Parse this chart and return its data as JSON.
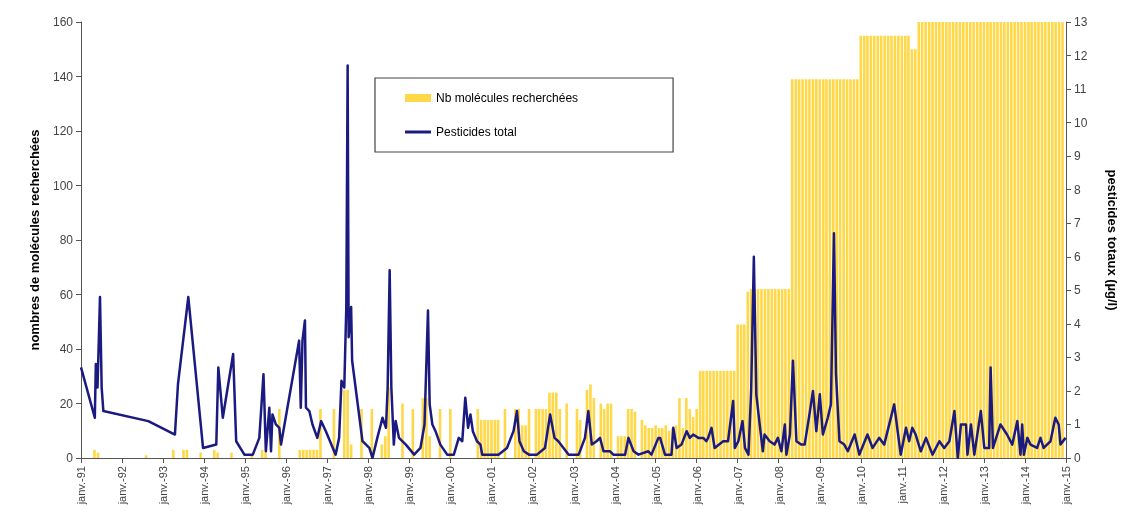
{
  "chart_data": {
    "type": "bar",
    "ylabel": "nombres de molécules recherchées",
    "y2label": "pesticides totaux (µg/l)",
    "xlim": [
      "1991-01",
      "2015-01"
    ],
    "xticks": [
      {
        "value": "1991-01",
        "label": "janv.-91"
      },
      {
        "value": "1992-01",
        "label": "janv.-92"
      },
      {
        "value": "1993-01",
        "label": "janv.-93"
      },
      {
        "value": "1994-01",
        "label": "janv.-94"
      },
      {
        "value": "1995-01",
        "label": "janv.-95"
      },
      {
        "value": "1996-01",
        "label": "janv.-96"
      },
      {
        "value": "1997-01",
        "label": "janv.-97"
      },
      {
        "value": "1998-01",
        "label": "janv.-98"
      },
      {
        "value": "1999-01",
        "label": "janv.-99"
      },
      {
        "value": "2000-01",
        "label": "janv.-00"
      },
      {
        "value": "2001-01",
        "label": "janv.-01"
      },
      {
        "value": "2002-01",
        "label": "janv.-02"
      },
      {
        "value": "2003-01",
        "label": "janv.-03"
      },
      {
        "value": "2004-01",
        "label": "janv.-04"
      },
      {
        "value": "2005-01",
        "label": "janv.-05"
      },
      {
        "value": "2006-01",
        "label": "janv.-06"
      },
      {
        "value": "2007-01",
        "label": "janv.-07"
      },
      {
        "value": "2008-01",
        "label": "janv.-08"
      },
      {
        "value": "2009-01",
        "label": "janv.-09"
      },
      {
        "value": "2010-01",
        "label": "janv.-10"
      },
      {
        "value": "2011-01",
        "label": "janv.-11"
      },
      {
        "value": "2012-01",
        "label": "janv.-12"
      },
      {
        "value": "2013-01",
        "label": "janv.-13"
      },
      {
        "value": "2014-01",
        "label": "janv.-14"
      },
      {
        "value": "2015-01",
        "label": "janv.-15"
      }
    ],
    "ylim": [
      0,
      160
    ],
    "yticks": [
      0,
      20,
      40,
      60,
      80,
      100,
      120,
      140,
      160
    ],
    "y2lim": [
      0,
      13
    ],
    "y2ticks": [
      0,
      1,
      2,
      3,
      4,
      5,
      6,
      7,
      8,
      9,
      10,
      11,
      12,
      13
    ],
    "legend": "top",
    "grid": false,
    "marker": "none",
    "series": [
      {
        "name": "Nb molécules recherchées",
        "color": "#ffd84a",
        "x": [
          "1991-05",
          "1991-06",
          "1992-08",
          "1993-04",
          "1993-07",
          "1993-08",
          "1993-12",
          "1994-04",
          "1994-05",
          "1994-09",
          "1995-03",
          "1995-06",
          "1995-07",
          "1995-11",
          "1996-05",
          "1996-06",
          "1996-07",
          "1996-08",
          "1996-09",
          "1996-10",
          "1996-11",
          "1997-03",
          "1997-06",
          "1997-07",
          "1997-08",
          "1997-11",
          "1998-02",
          "1998-05",
          "1998-06",
          "1998-07",
          "1998-11",
          "1999-02",
          "1999-05",
          "1999-06",
          "1999-07",
          "1999-10",
          "2000-01",
          "2000-09",
          "2000-10",
          "2000-11",
          "2000-12",
          "2001-01",
          "2001-02",
          "2001-03",
          "2001-05",
          "2001-08",
          "2001-09",
          "2001-10",
          "2001-11",
          "2001-12",
          "2002-02",
          "2002-03",
          "2002-04",
          "2002-05",
          "2002-06",
          "2002-07",
          "2002-08",
          "2002-09",
          "2002-11",
          "2003-02",
          "2003-03",
          "2003-05",
          "2003-06",
          "2003-07",
          "2003-09",
          "2003-10",
          "2003-11",
          "2003-12",
          "2004-02",
          "2004-03",
          "2004-04",
          "2004-05",
          "2004-06",
          "2004-07",
          "2004-09",
          "2004-10",
          "2004-11",
          "2004-12",
          "2005-01",
          "2005-02",
          "2005-03",
          "2005-04",
          "2005-05",
          "2005-06",
          "2005-07",
          "2005-08",
          "2005-09",
          "2005-10",
          "2005-11",
          "2005-12",
          "2006-01",
          "2006-02",
          "2006-03",
          "2006-04",
          "2006-05",
          "2006-06",
          "2006-07",
          "2006-08",
          "2006-09",
          "2006-10",
          "2006-11",
          "2006-12",
          "2007-01",
          "2007-02",
          "2007-03",
          "2007-04",
          "2007-05",
          "2007-06",
          "2007-07",
          "2007-08",
          "2007-09",
          "2007-10",
          "2007-11",
          "2007-12",
          "2008-01",
          "2008-02",
          "2008-03",
          "2008-04",
          "2008-05",
          "2008-06",
          "2008-07",
          "2008-08",
          "2008-09",
          "2008-10",
          "2008-11",
          "2008-12",
          "2009-01",
          "2009-02",
          "2009-03",
          "2009-04",
          "2009-05",
          "2009-06",
          "2009-07",
          "2009-08",
          "2009-09",
          "2009-10",
          "2009-11",
          "2009-12",
          "2010-01",
          "2010-02",
          "2010-03",
          "2010-04",
          "2010-05",
          "2010-06",
          "2010-07",
          "2010-08",
          "2010-09",
          "2010-10",
          "2010-11",
          "2010-12",
          "2011-01",
          "2011-02",
          "2011-03",
          "2011-04",
          "2011-05",
          "2011-06",
          "2011-07",
          "2011-08",
          "2011-09",
          "2011-10",
          "2011-11",
          "2011-12",
          "2012-01",
          "2012-02",
          "2012-03",
          "2012-04",
          "2012-05",
          "2012-06",
          "2012-07",
          "2012-08",
          "2012-09",
          "2012-10",
          "2012-11",
          "2012-12",
          "2013-01",
          "2013-02",
          "2013-03",
          "2013-04",
          "2013-05",
          "2013-06",
          "2013-07",
          "2013-08",
          "2013-09",
          "2013-10",
          "2013-11",
          "2013-12",
          "2014-01",
          "2014-02",
          "2014-03",
          "2014-04",
          "2014-05",
          "2014-06",
          "2014-07",
          "2014-08",
          "2014-09",
          "2014-10",
          "2014-11",
          "2014-12"
        ],
        "values": [
          3,
          2,
          1,
          3,
          3,
          3,
          2,
          3,
          2,
          2,
          1,
          3,
          2,
          18,
          3,
          3,
          3,
          3,
          3,
          3,
          18,
          18,
          25,
          25,
          5,
          18,
          18,
          5,
          8,
          26,
          20,
          18,
          22,
          22,
          8,
          18,
          18,
          18,
          14,
          14,
          14,
          14,
          14,
          14,
          18,
          18,
          18,
          12,
          12,
          18,
          18,
          18,
          18,
          18,
          24,
          24,
          24,
          18,
          20,
          18,
          14,
          25,
          27,
          22,
          20,
          18,
          20,
          20,
          8,
          8,
          8,
          18,
          18,
          17,
          14,
          12,
          11,
          11,
          12,
          11,
          11,
          12,
          10,
          11,
          12,
          22,
          11,
          22,
          18,
          15,
          18,
          32,
          32,
          32,
          32,
          32,
          32,
          32,
          32,
          32,
          32,
          32,
          49,
          49,
          49,
          61,
          62,
          62,
          62,
          62,
          62,
          62,
          62,
          62,
          62,
          62,
          62,
          62,
          139,
          139,
          139,
          139,
          139,
          139,
          139,
          139,
          139,
          139,
          139,
          139,
          139,
          139,
          139,
          139,
          139,
          139,
          139,
          139,
          155,
          155,
          155,
          155,
          155,
          155,
          155,
          155,
          155,
          155,
          155,
          155,
          155,
          155,
          155,
          150,
          150,
          160,
          160,
          160,
          160,
          160,
          160,
          160,
          160,
          160,
          160,
          160,
          160,
          160,
          160,
          160,
          160,
          160,
          160,
          160,
          160,
          160,
          160,
          160,
          160,
          160,
          160,
          160,
          160,
          160,
          160,
          160,
          160,
          160,
          160,
          160,
          160,
          160,
          160,
          160,
          160,
          160,
          160,
          160
        ]
      },
      {
        "name": "Pesticides total",
        "type": "line",
        "axis": "y2",
        "color": "#1a1a80",
        "x": [
          "1991-01-01",
          "1991-05-04",
          "1991-05-13",
          "1991-05-28",
          "1991-06-19",
          "1991-07-04",
          "1991-07-19",
          "1992-08-22",
          "1993-04-16",
          "1993-05-13",
          "1993-08-13",
          "1993-12-22",
          "1994-04-19",
          "1994-05-07",
          "1994-06-16",
          "1994-09-16",
          "1994-10-13",
          "1994-12-25",
          "1995-03-10",
          "1995-05-07",
          "1995-06-13",
          "1995-07-04",
          "1995-08-04",
          "1995-08-19",
          "1995-09-01",
          "1995-10-01",
          "1995-11-01",
          "1995-11-16",
          "1996-04-25",
          "1996-05-10",
          "1996-05-25",
          "1996-06-16",
          "1996-06-25",
          "1996-07-25",
          "1996-08-22",
          "1996-10-04",
          "1996-11-07",
          "1996-12-19",
          "1997-03-16",
          "1997-04-16",
          "1997-05-07",
          "1997-06-01",
          "1997-06-19",
          "1997-07-01",
          "1997-07-10",
          "1997-08-01",
          "1997-08-10",
          "1997-11-10",
          "1998-01-10",
          "1998-02-07",
          "1998-03-22",
          "1998-04-22",
          "1998-05-07",
          "1998-06-07",
          "1998-06-22",
          "1998-07-10",
          "1998-07-25",
          "1998-08-16",
          "1998-09-01",
          "1998-10-01",
          "1998-12-01",
          "1999-02-13",
          "1999-04-10",
          "1999-05-16",
          "1999-06-16",
          "1999-07-01",
          "1999-07-25",
          "1999-08-22",
          "1999-10-04",
          "1999-12-04",
          "2000-02-01",
          "2000-03-16",
          "2000-04-16",
          "2000-05-13",
          "2000-06-07",
          "2000-06-28",
          "2000-07-19",
          "2000-08-25",
          "2000-09-25",
          "2000-10-10",
          "2000-12-07",
          "2001-03-04",
          "2001-05-19",
          "2001-07-16",
          "2001-08-16",
          "2001-09-07",
          "2001-10-16",
          "2001-12-01",
          "2002-02-10",
          "2002-04-22",
          "2002-06-07",
          "2002-07-16",
          "2002-08-19",
          "2002-10-04",
          "2002-11-19",
          "2003-02-16",
          "2003-04-13",
          "2003-05-13",
          "2003-06-13",
          "2003-07-25",
          "2003-08-25",
          "2003-09-25",
          "2003-11-22",
          "2003-12-22",
          "2004-04-04",
          "2004-05-04",
          "2004-06-19",
          "2004-08-01",
          "2004-10-28",
          "2004-11-25",
          "2005-01-25",
          "2005-02-10",
          "2005-03-25",
          "2005-05-22",
          "2005-06-07",
          "2005-07-07",
          "2005-08-19",
          "2005-10-04",
          "2005-11-01",
          "2005-12-01",
          "2006-01-16",
          "2006-03-01",
          "2006-03-28",
          "2006-04-13",
          "2006-05-13",
          "2006-06-10",
          "2006-08-25",
          "2006-10-07",
          "2006-11-22",
          "2006-12-07",
          "2007-01-07",
          "2007-02-13",
          "2007-03-07",
          "2007-04-07",
          "2007-05-01",
          "2007-05-25",
          "2007-06-16",
          "2007-07-16",
          "2007-08-13",
          "2007-08-28",
          "2007-10-13",
          "2007-11-25",
          "2007-12-25",
          "2008-01-25",
          "2008-02-25",
          "2008-03-10",
          "2008-04-10",
          "2008-05-07",
          "2008-06-07",
          "2008-07-19",
          "2008-08-19",
          "2008-10-01",
          "2008-11-01",
          "2008-12-01",
          "2009-01-01",
          "2009-01-28",
          "2009-03-13",
          "2009-04-10",
          "2009-05-07",
          "2009-05-25",
          "2009-06-25",
          "2009-08-07",
          "2009-09-07",
          "2009-11-07",
          "2009-12-19",
          "2010-03-01",
          "2010-04-16",
          "2010-06-13",
          "2010-07-28",
          "2010-10-25",
          "2010-12-22",
          "2011-02-07",
          "2011-03-07",
          "2011-04-04",
          "2011-05-04",
          "2011-06-19",
          "2011-08-04",
          "2011-10-01",
          "2011-12-01",
          "2012-01-13",
          "2012-02-28",
          "2012-04-13",
          "2012-05-13",
          "2012-06-10",
          "2012-07-25",
          "2012-08-07",
          "2012-09-07",
          "2012-10-07",
          "2012-12-04",
          "2013-01-04",
          "2013-02-16",
          "2013-03-01",
          "2013-03-22",
          "2013-05-28",
          "2013-07-25",
          "2013-09-10",
          "2013-10-25",
          "2013-11-22",
          "2013-12-07",
          "2013-12-22",
          "2014-01-22",
          "2014-02-19",
          "2014-04-19",
          "2014-05-19",
          "2014-06-16",
          "2014-07-16",
          "2014-08-16",
          "2014-09-28",
          "2014-10-28",
          "2014-11-13",
          "2014-12-28"
        ],
        "values": [
          2.7,
          1.2,
          2.8,
          2.1,
          4.8,
          2.1,
          1.4,
          1.1,
          0.7,
          2.2,
          4.8,
          0.3,
          0.4,
          2.7,
          1.2,
          3.1,
          0.5,
          0.1,
          0.1,
          0.6,
          2.5,
          0.2,
          1.5,
          0.2,
          1.3,
          1.0,
          0.9,
          0.4,
          3.5,
          1.5,
          3.5,
          4.1,
          1.5,
          1.4,
          1.0,
          0.6,
          1.1,
          0.8,
          0.1,
          0.6,
          2.3,
          2.1,
          4.5,
          11.7,
          3.6,
          4.5,
          2.9,
          0.5,
          0.3,
          0.0,
          0.6,
          1.0,
          1.2,
          0.9,
          2.1,
          5.6,
          2.1,
          0.4,
          1.1,
          0.6,
          0.4,
          0.1,
          0.3,
          1.0,
          4.4,
          1.6,
          1.0,
          0.8,
          0.4,
          0.1,
          0.1,
          0.6,
          0.5,
          1.8,
          0.9,
          1.3,
          0.8,
          0.5,
          0.4,
          0.1,
          0.1,
          0.1,
          0.3,
          0.8,
          1.4,
          0.5,
          0.2,
          0.1,
          0.1,
          0.3,
          1.3,
          0.6,
          0.5,
          0.3,
          0.1,
          0.1,
          0.6,
          1.4,
          0.4,
          0.5,
          0.6,
          0.2,
          0.2,
          0.1,
          0.1,
          0.6,
          0.2,
          0.1,
          0.2,
          0.1,
          0.6,
          0.6,
          0.1,
          0.1,
          0.9,
          0.3,
          0.4,
          0.8,
          0.6,
          0.7,
          0.6,
          0.6,
          0.5,
          0.6,
          0.9,
          0.3,
          0.5,
          0.5,
          1.7,
          0.3,
          0.5,
          1.1,
          0.3,
          0.1,
          2.0,
          6.0,
          1.9,
          1.0,
          0.2,
          0.7,
          0.5,
          0.4,
          0.6,
          0.2,
          1.0,
          0.1,
          0.7,
          2.9,
          0.5,
          0.4,
          0.4,
          1.3,
          2.0,
          0.8,
          1.9,
          0.7,
          1.2,
          1.6,
          6.7,
          2.5,
          0.5,
          0.4,
          0.2,
          0.7,
          0.1,
          0.7,
          0.3,
          0.6,
          0.4,
          1.6,
          0.1,
          0.9,
          0.5,
          0.9,
          0.7,
          0.2,
          0.6,
          0.1,
          0.5,
          0.3,
          0.5,
          1.4,
          0.0,
          1.0,
          1.0,
          0.1,
          1.0,
          0.1,
          1.4,
          0.3,
          0.3,
          2.7,
          0.3,
          1.0,
          0.7,
          0.4,
          1.1,
          0.1,
          1.0,
          0.1,
          0.6,
          0.4,
          0.3,
          0.6,
          0.3,
          0.4,
          0.5,
          1.2,
          1.0,
          0.4,
          0.6
        ]
      }
    ]
  }
}
